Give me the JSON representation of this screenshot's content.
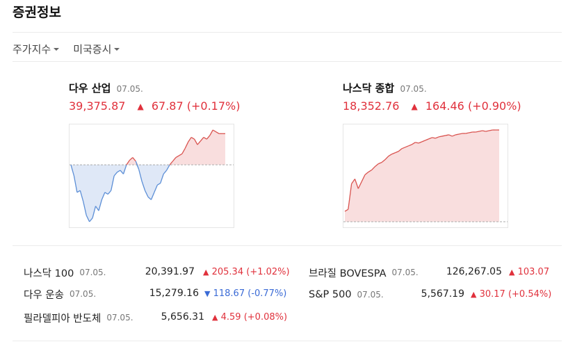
{
  "header": {
    "title": "증권정보"
  },
  "tabs": [
    {
      "label": "주가지수"
    },
    {
      "label": "미국증시"
    }
  ],
  "cards": [
    {
      "name": "다우 산업",
      "date": "07.05.",
      "value": "39,375.87",
      "change": "67.87",
      "pct": "(+0.17%)",
      "arrow": "▲",
      "colors": {
        "up": "#d9534f",
        "down": "#5b8ed6",
        "up_fill": "#f9dede",
        "down_fill": "#dfe8f7"
      },
      "baseline": 0,
      "series": [
        0,
        -12,
        -30,
        -28,
        -40,
        -55,
        -62,
        -58,
        -45,
        -50,
        -38,
        -30,
        -32,
        -28,
        -12,
        -8,
        -6,
        -10,
        0,
        5,
        8,
        4,
        -5,
        -18,
        -28,
        -35,
        -38,
        -30,
        -22,
        -20,
        -10,
        -6,
        0,
        4,
        8,
        10,
        12,
        18,
        25,
        30,
        28,
        22,
        26,
        30,
        28,
        32,
        38,
        36,
        34,
        34,
        34
      ]
    },
    {
      "name": "나스닥 종합",
      "date": "07.05.",
      "value": "18,352.76",
      "change": "164.46",
      "pct": "(+0.90%)",
      "arrow": "▲",
      "colors": {
        "up": "#d9534f",
        "down": "#5b8ed6",
        "up_fill": "#f9dede",
        "down_fill": "#dfe8f7"
      },
      "baseline": 0,
      "series": [
        15,
        18,
        55,
        62,
        48,
        58,
        68,
        72,
        75,
        80,
        84,
        86,
        90,
        95,
        98,
        100,
        102,
        106,
        108,
        110,
        112,
        115,
        114,
        116,
        118,
        120,
        122,
        121,
        123,
        124,
        125,
        126,
        124,
        126,
        127,
        128,
        128,
        129,
        130,
        130,
        131,
        132,
        131,
        132,
        133,
        133,
        133
      ]
    }
  ],
  "list_left": [
    {
      "name": "나스닥 100",
      "date": "07.05.",
      "value": "20,391.97",
      "arrow": "▲",
      "change": "205.34",
      "pct": "(+1.02%)",
      "dir": "up"
    },
    {
      "name": "다우 운송",
      "date": "07.05.",
      "value": "15,279.16",
      "arrow": "▼",
      "change": "118.67",
      "pct": "(-0.77%)",
      "dir": "down"
    },
    {
      "name": "필라델피아 반도체",
      "date": "07.05.",
      "value": "5,656.31",
      "arrow": "▲",
      "change": "4.59",
      "pct": "(+0.08%)",
      "dir": "up"
    }
  ],
  "list_right": [
    {
      "name": "브라질 BOVESPA",
      "date": "07.05.",
      "value": "126,267.05",
      "arrow": "▲",
      "change": "103.07",
      "pct": "",
      "dir": "up"
    },
    {
      "name": "S&P 500",
      "date": "07.05.",
      "value": "5,567.19",
      "arrow": "▲",
      "change": "30.17",
      "pct": "(+0.54%)",
      "dir": "up"
    }
  ]
}
